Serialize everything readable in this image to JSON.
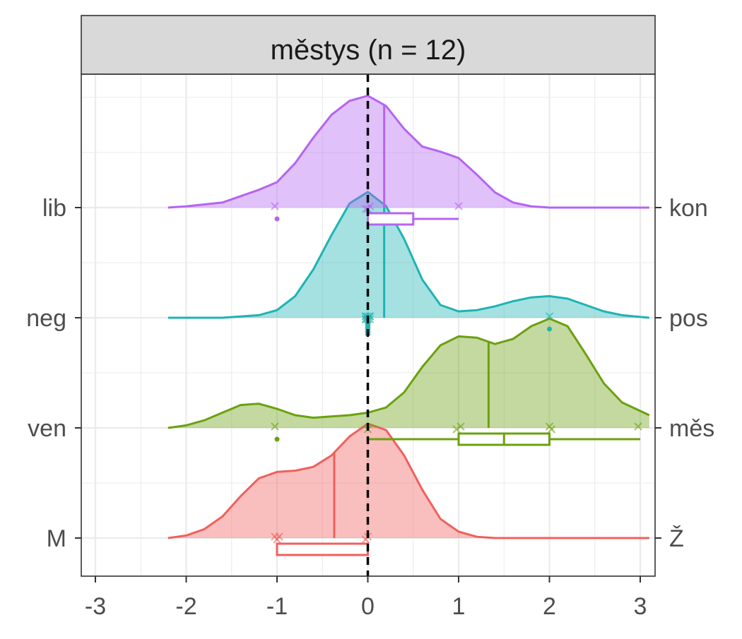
{
  "chart_data": {
    "type": "ridgeline",
    "facet_title": "městys (n = 12)",
    "xlim": [
      -3.1,
      3.15
    ],
    "x_ticks": [
      -3,
      -2,
      -1,
      0,
      1,
      2,
      3
    ],
    "x_tick_labels": [
      "-3",
      "-2",
      "-1",
      "0",
      "1",
      "2",
      "3"
    ],
    "reference_line_x": 0,
    "grid": true,
    "series": [
      {
        "left_label": "M",
        "right_label": "Ž",
        "color": "#F0605D",
        "x": [
          -2.2,
          -2.0,
          -1.8,
          -1.6,
          -1.4,
          -1.2,
          -1.0,
          -0.8,
          -0.6,
          -0.4,
          -0.2,
          0.0,
          0.2,
          0.4,
          0.6,
          0.8,
          1.0,
          1.2,
          1.4,
          1.6,
          2.0,
          2.5,
          3.1
        ],
        "density": [
          0.0,
          0.02,
          0.07,
          0.17,
          0.33,
          0.47,
          0.52,
          0.53,
          0.56,
          0.65,
          0.8,
          0.9,
          0.85,
          0.65,
          0.38,
          0.15,
          0.05,
          0.01,
          0.0,
          0.0,
          0.0,
          0.0,
          0.0
        ],
        "median": -0.37,
        "points": [
          -1,
          -1,
          -1,
          0,
          0
        ],
        "box": {
          "q1": -1,
          "median": 0,
          "q3": 0,
          "whisker_low": -1,
          "whisker_high": 0
        }
      },
      {
        "left_label": "ven",
        "right_label": "měs",
        "color": "#6BA10F",
        "x": [
          -2.2,
          -2.0,
          -1.8,
          -1.6,
          -1.4,
          -1.2,
          -1.0,
          -0.8,
          -0.6,
          -0.4,
          -0.2,
          0.0,
          0.2,
          0.4,
          0.6,
          0.8,
          1.0,
          1.2,
          1.4,
          1.6,
          1.8,
          2.0,
          2.2,
          2.4,
          2.6,
          2.8,
          3.1
        ],
        "density": [
          0.0,
          0.02,
          0.06,
          0.12,
          0.18,
          0.19,
          0.15,
          0.1,
          0.08,
          0.09,
          0.1,
          0.12,
          0.16,
          0.28,
          0.48,
          0.65,
          0.72,
          0.71,
          0.66,
          0.7,
          0.8,
          0.86,
          0.8,
          0.58,
          0.35,
          0.2,
          0.1
        ],
        "median": 1.33,
        "points": [
          -1,
          0,
          1,
          1,
          2,
          2,
          3
        ],
        "box": {
          "q1": 1,
          "median": 1.5,
          "q3": 2,
          "whisker_low": 0,
          "whisker_high": 3
        },
        "outliers": [
          -1
        ]
      },
      {
        "left_label": "neg",
        "right_label": "pos",
        "color": "#1FB3B3",
        "x": [
          -2.2,
          -1.6,
          -1.2,
          -1.0,
          -0.8,
          -0.6,
          -0.4,
          -0.2,
          0.0,
          0.2,
          0.4,
          0.6,
          0.8,
          1.0,
          1.2,
          1.4,
          1.6,
          1.8,
          2.0,
          2.2,
          2.4,
          2.6,
          2.8,
          3.1
        ],
        "density": [
          0.0,
          0.0,
          0.02,
          0.06,
          0.17,
          0.38,
          0.65,
          0.9,
          0.99,
          0.88,
          0.62,
          0.3,
          0.1,
          0.05,
          0.06,
          0.09,
          0.13,
          0.16,
          0.17,
          0.15,
          0.1,
          0.05,
          0.02,
          0.0
        ],
        "median": 0.18,
        "points": [
          0,
          0,
          0,
          0,
          0,
          0,
          0,
          0,
          0,
          0,
          2
        ],
        "box": {
          "q1": 0,
          "median": 0,
          "q3": 0,
          "whisker_low": 0,
          "whisker_high": 0
        },
        "outliers": [
          2
        ]
      },
      {
        "left_label": "lib",
        "right_label": "kon",
        "color": "#B564F2",
        "x": [
          -2.2,
          -2.0,
          -1.6,
          -1.2,
          -1.0,
          -0.8,
          -0.6,
          -0.4,
          -0.2,
          0.0,
          0.2,
          0.4,
          0.6,
          0.8,
          1.0,
          1.2,
          1.4,
          1.6,
          1.8,
          2.0,
          2.4,
          3.1
        ],
        "density": [
          0.0,
          0.01,
          0.04,
          0.14,
          0.2,
          0.35,
          0.55,
          0.73,
          0.84,
          0.88,
          0.8,
          0.62,
          0.48,
          0.44,
          0.39,
          0.26,
          0.12,
          0.04,
          0.01,
          0.0,
          0.0,
          0.0
        ],
        "median": 0.18,
        "points": [
          -1,
          0,
          0,
          0,
          1
        ],
        "box": {
          "q1": 0,
          "median": 0,
          "q3": 0.5,
          "whisker_low": 0,
          "whisker_high": 1
        },
        "outliers": [
          -1
        ]
      }
    ]
  }
}
